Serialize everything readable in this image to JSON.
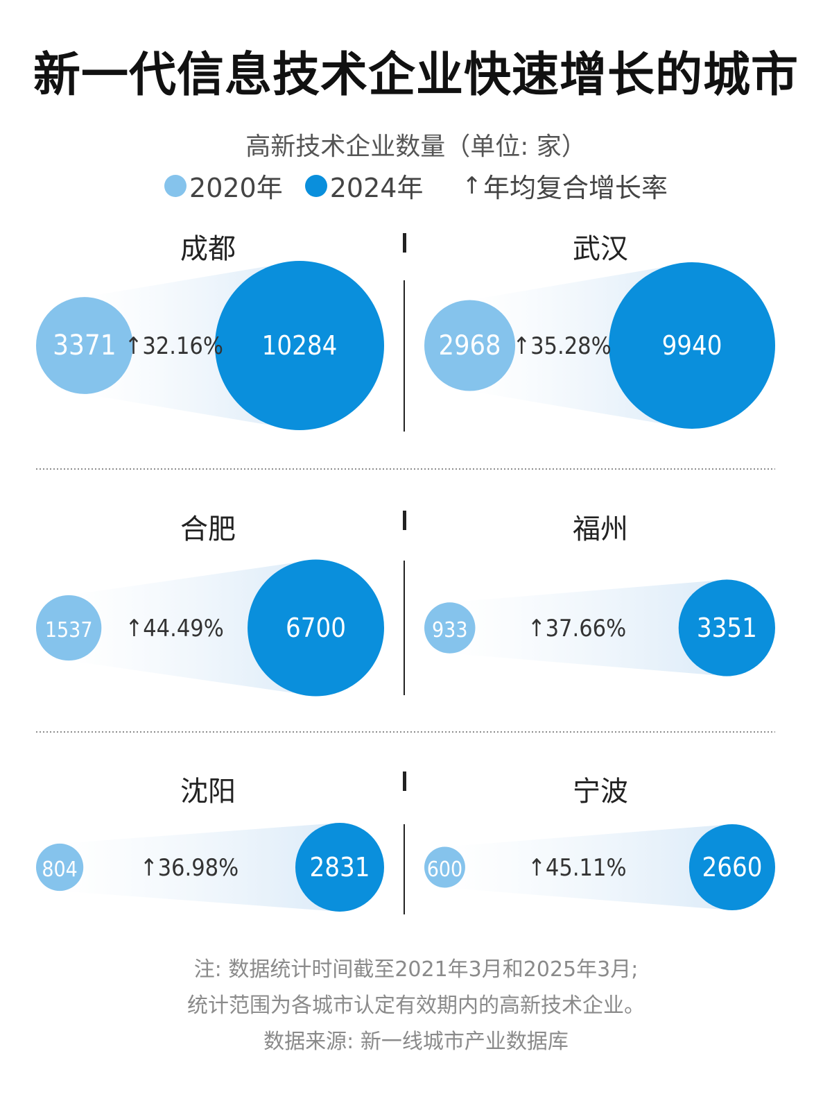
{
  "title": "新一代信息技术企业快速增长的城市",
  "subtitle": "高新技术企业数量（单位: 家）",
  "legend": {
    "item2020": "2020年",
    "item2024": "2024年",
    "growth": "年均复合增长率",
    "arrow": "↑"
  },
  "colors": {
    "y2020": "#85c3ec",
    "y2024": "#0a8fdc",
    "cone": "#dcebf8",
    "divider": "#222222"
  },
  "chart_data": {
    "type": "bubble",
    "series": [
      {
        "name": "2020年"
      },
      {
        "name": "2024年"
      }
    ],
    "cities": [
      {
        "name": "成都",
        "v2020": 3371,
        "v2024": 10284,
        "growth": "32.16%"
      },
      {
        "name": "武汉",
        "v2020": 2968,
        "v2024": 9940,
        "growth": "35.28%"
      },
      {
        "name": "合肥",
        "v2020": 1537,
        "v2024": 6700,
        "growth": "44.49%"
      },
      {
        "name": "福州",
        "v2020": 933,
        "v2024": 3351,
        "growth": "37.66%"
      },
      {
        "name": "沈阳",
        "v2020": 804,
        "v2024": 2831,
        "growth": "36.98%"
      },
      {
        "name": "宁波",
        "v2020": 600,
        "v2024": 2660,
        "growth": "45.11%"
      }
    ]
  },
  "notes": {
    "line1": "注: 数据统计时间截至2021年3月和2025年3月;",
    "line2": "统计范围为各城市认定有效期内的高新技术企业。",
    "source": "数据来源: 新一线城市产业数据库"
  }
}
